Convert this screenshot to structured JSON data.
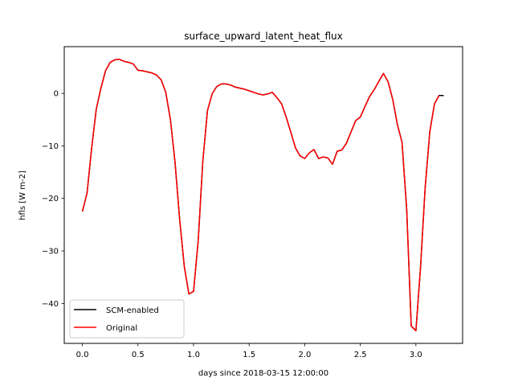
{
  "chart_data": {
    "type": "line",
    "title": "surface_upward_latent_heat_flux",
    "xlabel": "days since 2018-03-15 12:00:00",
    "ylabel": "hfls [W m-2]",
    "xlim": [
      -0.163,
      3.42
    ],
    "ylim": [
      -47.6,
      8.9
    ],
    "xticks": [
      0.0,
      0.5,
      1.0,
      1.5,
      2.0,
      2.5,
      3.0
    ],
    "xtick_labels": [
      "0.0",
      "0.5",
      "1.0",
      "1.5",
      "2.0",
      "2.5",
      "3.0"
    ],
    "yticks": [
      0,
      -10,
      -20,
      -30,
      -40
    ],
    "ytick_labels": [
      "0",
      "−10",
      "−20",
      "−30",
      "−40"
    ],
    "grid": false,
    "legend_position": "lower-left",
    "series": [
      {
        "name": "SCM-enabled",
        "color": "#000000",
        "x": [
          0.0,
          0.042,
          0.083,
          0.125,
          0.167,
          0.208,
          0.25,
          0.292,
          0.333,
          0.375,
          0.417,
          0.458,
          0.5,
          0.542,
          0.583,
          0.625,
          0.667,
          0.708,
          0.75,
          0.792,
          0.833,
          0.875,
          0.917,
          0.958,
          1.0,
          1.042,
          1.083,
          1.125,
          1.167,
          1.208,
          1.25,
          1.292,
          1.333,
          1.375,
          1.417,
          1.458,
          1.5,
          1.542,
          1.583,
          1.625,
          1.667,
          1.708,
          1.75,
          1.792,
          1.833,
          1.875,
          1.917,
          1.958,
          2.0,
          2.042,
          2.083,
          2.125,
          2.167,
          2.208,
          2.25,
          2.292,
          2.333,
          2.375,
          2.417,
          2.458,
          2.5,
          2.542,
          2.583,
          2.625,
          2.667,
          2.708,
          2.75,
          2.792,
          2.833,
          2.875,
          2.917,
          2.958,
          3.0,
          3.042,
          3.083,
          3.125,
          3.167,
          3.208,
          3.25
        ],
        "y": [
          -22.5,
          -19.0,
          -10.5,
          -3.0,
          1.0,
          4.3,
          5.9,
          6.4,
          6.5,
          6.1,
          5.9,
          5.6,
          4.4,
          4.3,
          4.1,
          3.9,
          3.5,
          2.6,
          0.2,
          -5.0,
          -13.0,
          -24.0,
          -33.0,
          -38.2,
          -37.7,
          -28.0,
          -13.0,
          -3.3,
          -0.1,
          1.3,
          1.8,
          1.8,
          1.6,
          1.2,
          1.0,
          0.8,
          0.5,
          0.2,
          -0.1,
          -0.3,
          -0.1,
          0.2,
          -0.8,
          -2.0,
          -4.5,
          -7.4,
          -10.4,
          -11.9,
          -12.4,
          -11.3,
          -10.7,
          -12.4,
          -12.1,
          -12.3,
          -13.5,
          -11.0,
          -10.8,
          -9.5,
          -7.3,
          -5.2,
          -4.5,
          -2.5,
          -0.6,
          0.7,
          2.3,
          3.8,
          2.2,
          -1.2,
          -5.9,
          -9.3,
          -22.0,
          -44.3,
          -45.2,
          -33.0,
          -18.0,
          -7.3,
          -2.0,
          -0.4,
          -0.4
        ]
      },
      {
        "name": "Original",
        "color": "#ff0000",
        "x": [
          0.0,
          0.042,
          0.083,
          0.125,
          0.167,
          0.208,
          0.25,
          0.292,
          0.333,
          0.375,
          0.417,
          0.458,
          0.5,
          0.542,
          0.583,
          0.625,
          0.667,
          0.708,
          0.75,
          0.792,
          0.833,
          0.875,
          0.917,
          0.958,
          1.0,
          1.042,
          1.083,
          1.125,
          1.167,
          1.208,
          1.25,
          1.292,
          1.333,
          1.375,
          1.417,
          1.458,
          1.5,
          1.542,
          1.583,
          1.625,
          1.667,
          1.708,
          1.75,
          1.792,
          1.833,
          1.875,
          1.917,
          1.958,
          2.0,
          2.042,
          2.083,
          2.125,
          2.167,
          2.208,
          2.25,
          2.292,
          2.333,
          2.375,
          2.417,
          2.458,
          2.5,
          2.542,
          2.583,
          2.625,
          2.667,
          2.708,
          2.75,
          2.792,
          2.833,
          2.875,
          2.917,
          2.958,
          3.0,
          3.042,
          3.083,
          3.125,
          3.167,
          3.208
        ],
        "y": [
          -22.5,
          -19.0,
          -10.5,
          -3.0,
          1.0,
          4.3,
          5.9,
          6.4,
          6.5,
          6.1,
          5.9,
          5.6,
          4.4,
          4.3,
          4.1,
          3.9,
          3.5,
          2.6,
          0.2,
          -5.0,
          -13.0,
          -24.0,
          -33.0,
          -38.2,
          -37.7,
          -28.0,
          -13.0,
          -3.3,
          -0.1,
          1.3,
          1.8,
          1.8,
          1.6,
          1.2,
          1.0,
          0.8,
          0.5,
          0.2,
          -0.1,
          -0.3,
          -0.1,
          0.2,
          -0.8,
          -2.0,
          -4.5,
          -7.4,
          -10.4,
          -11.9,
          -12.4,
          -11.3,
          -10.7,
          -12.4,
          -12.1,
          -12.3,
          -13.5,
          -11.0,
          -10.8,
          -9.5,
          -7.3,
          -5.2,
          -4.5,
          -2.5,
          -0.6,
          0.7,
          2.3,
          3.8,
          2.2,
          -1.2,
          -5.9,
          -9.3,
          -22.0,
          -44.3,
          -45.2,
          -33.0,
          -18.0,
          -7.3,
          -2.0,
          -0.4
        ]
      }
    ]
  }
}
